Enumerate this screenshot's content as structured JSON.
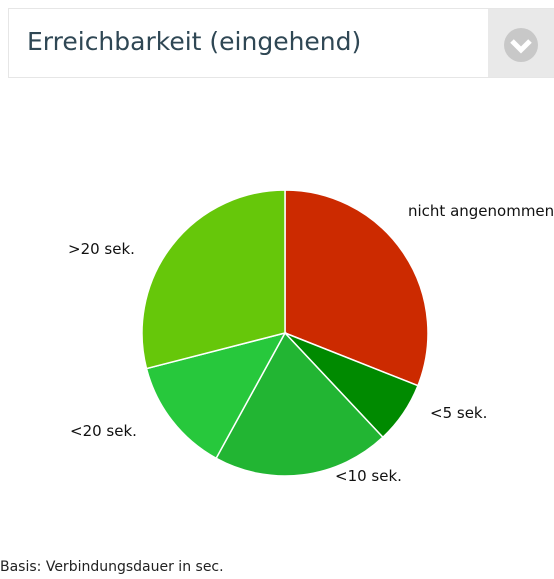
{
  "chart_data": {
    "type": "pie",
    "title": "Erreichbarkeit (eingehend)",
    "categories": [
      "nicht angenommen",
      "<5 sek.",
      "<10 sek.",
      "<20 sek.",
      ">20 sek."
    ],
    "values": [
      31,
      7,
      20,
      13,
      29
    ],
    "colors": [
      "#cc2a00",
      "#008a00",
      "#22b533",
      "#27c83c",
      "#66c70a"
    ],
    "footnote": "Basis: Verbindungsdauer in sec."
  }
}
